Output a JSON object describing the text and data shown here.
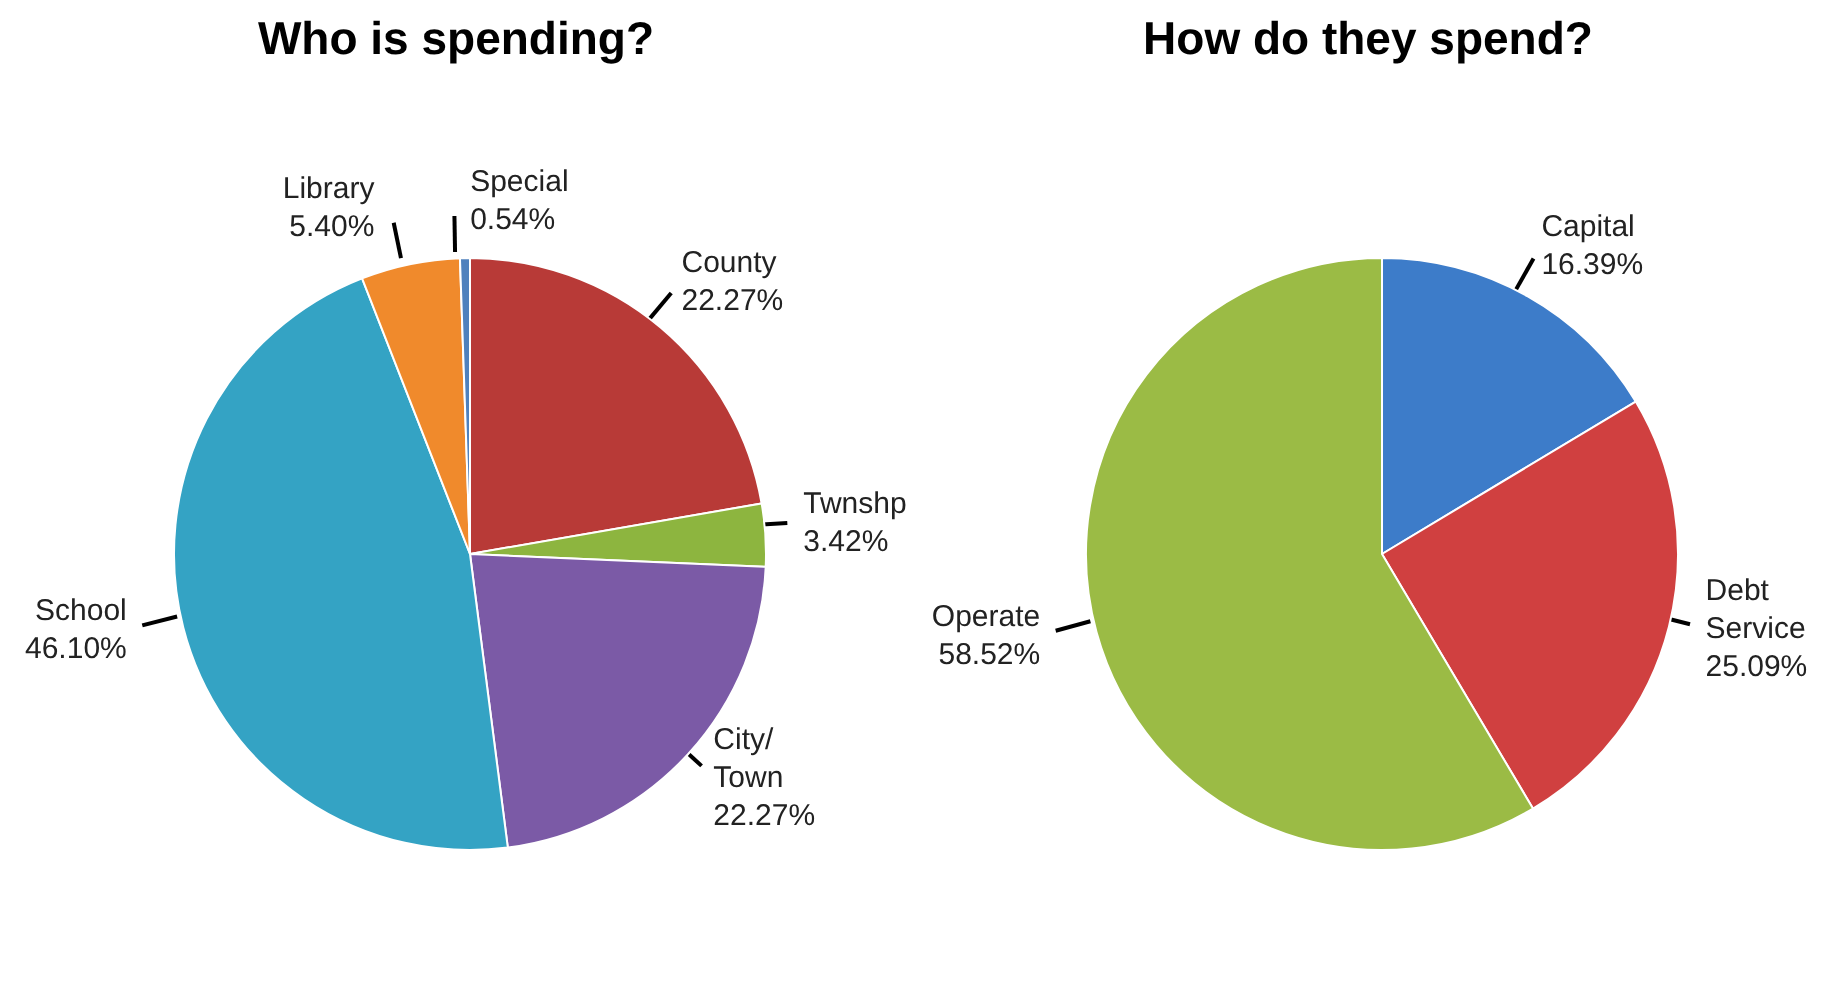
{
  "chart_data": [
    {
      "type": "pie",
      "title": "Who is spending?",
      "categories": [
        "County",
        "Twnshp",
        "City/ Town",
        "School",
        "Library",
        "Special"
      ],
      "values": [
        22.27,
        3.42,
        22.27,
        46.1,
        5.4,
        0.54
      ],
      "value_labels": [
        "22.27%",
        "3.42%",
        "22.27%",
        "46.10%",
        "5.40%",
        "0.54%"
      ],
      "colors": [
        "#b83a37",
        "#8db53f",
        "#7b5aa6",
        "#34a3c4",
        "#f08a2c",
        "#4f81bd"
      ]
    },
    {
      "type": "pie",
      "title": "How do they spend?",
      "categories": [
        "Capital",
        "Debt Service",
        "Operate"
      ],
      "values": [
        16.39,
        25.09,
        58.52
      ],
      "value_labels": [
        "16.39%",
        "25.09%",
        "58.52%"
      ],
      "colors": [
        "#3d7cc9",
        "#d04040",
        "#9bbb45"
      ]
    }
  ]
}
